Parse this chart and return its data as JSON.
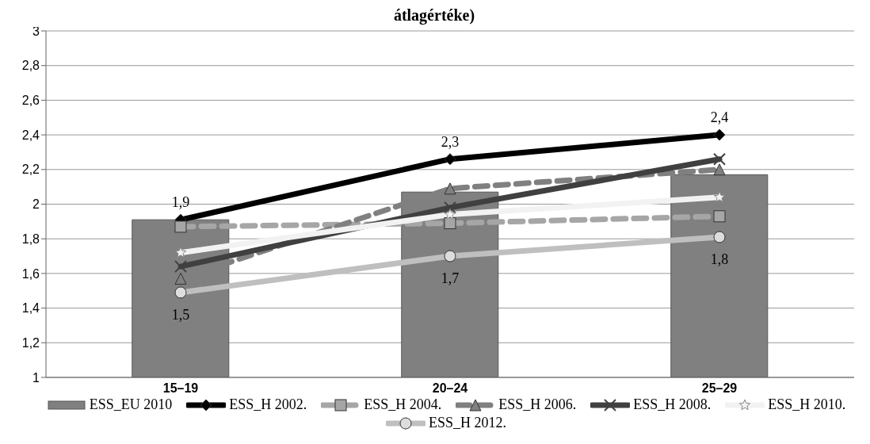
{
  "chart_data": {
    "type": "bar",
    "title": "átlagértéke)",
    "categories": [
      "15–19",
      "20–24",
      "25–29"
    ],
    "series": [
      {
        "name": "ESS_EU 2010",
        "color": "#808080",
        "values": [
          1.91,
          2.07,
          2.17
        ]
      },
      {
        "name": "ESS_H 2002.",
        "type": "line",
        "color": "#000000",
        "marker": "diamond",
        "values": [
          1.91,
          2.26,
          2.4
        ],
        "value_labels": [
          "1,9",
          "2,3",
          "2,4"
        ]
      },
      {
        "name": "ESS_H 2004.",
        "type": "line",
        "color": "#a6a6a6",
        "marker": "square",
        "line_style": "dashed",
        "values": [
          1.87,
          1.89,
          1.93
        ]
      },
      {
        "name": "ESS_H 2006.",
        "type": "line",
        "color": "#808080",
        "marker": "triangle",
        "line_style": "dashed",
        "values": [
          1.57,
          2.09,
          2.2
        ]
      },
      {
        "name": "ESS_H 2008.",
        "type": "line",
        "color": "#404040",
        "marker": "cross",
        "values": [
          1.64,
          1.98,
          2.26
        ]
      },
      {
        "name": "ESS_H 2010.",
        "type": "line",
        "color": "#f2f2f2",
        "marker": "star",
        "values": [
          1.72,
          1.94,
          2.04
        ]
      },
      {
        "name": "ESS_H 2012.",
        "type": "line",
        "color": "#bfbfbf",
        "marker": "circle",
        "values": [
          1.49,
          1.7,
          1.81
        ],
        "value_labels": [
          "1,5",
          "1,7",
          "1,8"
        ]
      }
    ],
    "ylim": [
      1,
      3
    ],
    "yticks": [
      {
        "value": 1,
        "label": "1"
      },
      {
        "value": 1.2,
        "label": "1,2"
      },
      {
        "value": 1.4,
        "label": "1,4"
      },
      {
        "value": 1.6,
        "label": "1,6"
      },
      {
        "value": 1.8,
        "label": "1,8"
      },
      {
        "value": 2,
        "label": "2"
      },
      {
        "value": 2.2,
        "label": "2,2"
      },
      {
        "value": 2.4,
        "label": "2,4"
      },
      {
        "value": 2.6,
        "label": "2,6"
      },
      {
        "value": 2.8,
        "label": "2,8"
      },
      {
        "value": 3,
        "label": "3"
      }
    ],
    "grid": "y",
    "legend": "bottom"
  }
}
